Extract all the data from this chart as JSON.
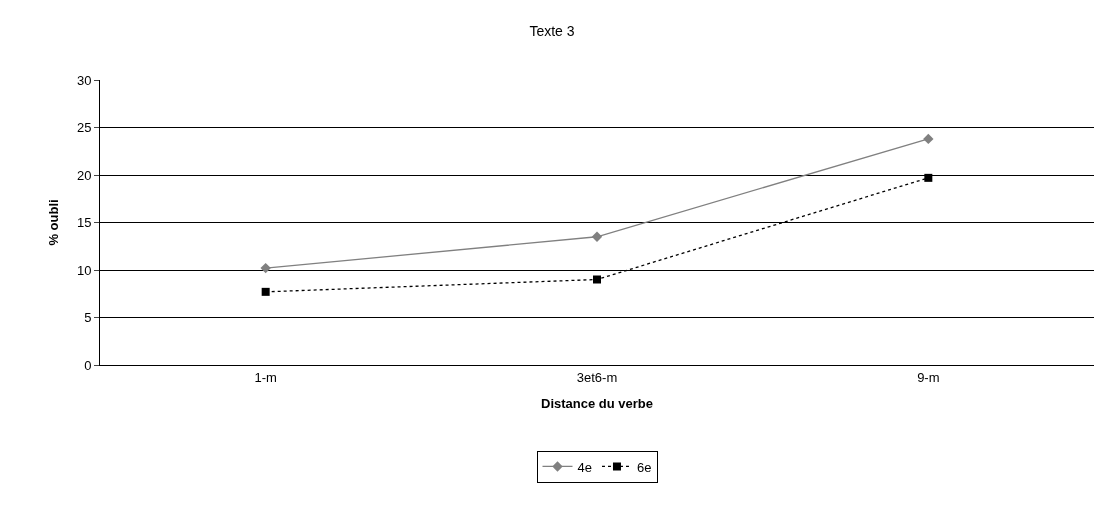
{
  "chart_data": {
    "type": "line",
    "title": "Texte 3",
    "xlabel": "Distance du verbe",
    "ylabel": "% oubli",
    "categories": [
      "1-m",
      "3et6-m",
      "9-m"
    ],
    "series": [
      {
        "name": "4e",
        "color": "#808080",
        "values": [
          10.2,
          13.5,
          23.8
        ],
        "marker": "diamond",
        "line_style": "solid"
      },
      {
        "name": "6e",
        "color": "#000000",
        "values": [
          7.7,
          9.0,
          19.7
        ],
        "marker": "square",
        "line_style": "dotted"
      }
    ],
    "ylim": [
      0,
      30
    ],
    "yticks": [
      0,
      5,
      10,
      15,
      20,
      25,
      30
    ],
    "grid": "y",
    "legend": "bottom"
  }
}
